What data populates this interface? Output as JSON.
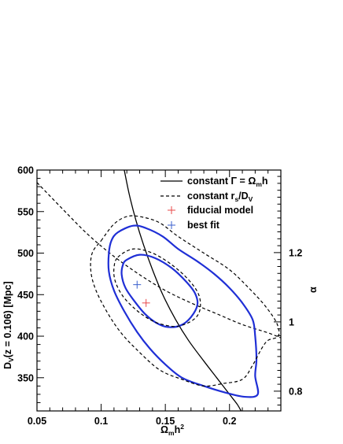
{
  "chart_data": {
    "type": "contour",
    "xlabel": {
      "main": "Ω",
      "sub": "m",
      "after": "h",
      "sup": "2"
    },
    "ylabel": {
      "main": "D",
      "sub": "V",
      "after": "(z = 0.106) [Mpc]"
    },
    "ylabel_right": "α",
    "xlim": [
      0.05,
      0.24
    ],
    "ylim": [
      310,
      600
    ],
    "x_ticks": [
      0.05,
      0.1,
      0.15,
      0.2
    ],
    "x_tick_labels": [
      "0.05",
      "0.1",
      "0.15",
      "0.2"
    ],
    "y_ticks": [
      350,
      400,
      450,
      500,
      550,
      600
    ],
    "y_tick_labels": [
      "350",
      "400",
      "450",
      "500",
      "550",
      "600"
    ],
    "right_ticks_y": [
      333.8,
      417.2,
      500.6
    ],
    "right_tick_labels": [
      "0.8",
      "1",
      "1.2"
    ],
    "legend": [
      {
        "style": "solid",
        "label_main": "constant Γ = Ω",
        "label_sub": "m",
        "label_after": "h"
      },
      {
        "style": "dashed",
        "label_main": "constant r",
        "label_sub": "s",
        "label_after": "/D",
        "label_sub2": "V"
      },
      {
        "style": "marker",
        "color": "#e84a4a",
        "label_main": "fiducial model"
      },
      {
        "style": "marker",
        "color": "#3a5fcd",
        "label_main": "best fit"
      }
    ],
    "series": [
      {
        "style": "solid-black",
        "points": [
          [
            0.118,
            600
          ],
          [
            0.122,
            570
          ],
          [
            0.127,
            540
          ],
          [
            0.133,
            510
          ],
          [
            0.14,
            480
          ],
          [
            0.148,
            450
          ],
          [
            0.158,
            420
          ],
          [
            0.168,
            395
          ],
          [
            0.18,
            370
          ],
          [
            0.19,
            350
          ],
          [
            0.2,
            330
          ],
          [
            0.206,
            318
          ],
          [
            0.209,
            310
          ]
        ]
      },
      {
        "style": "dashed-black",
        "points": [
          [
            0.05,
            585
          ],
          [
            0.07,
            553
          ],
          [
            0.09,
            522
          ],
          [
            0.11,
            496
          ],
          [
            0.13,
            474
          ],
          [
            0.15,
            455
          ],
          [
            0.17,
            440
          ],
          [
            0.19,
            427
          ],
          [
            0.21,
            414
          ],
          [
            0.23,
            404
          ],
          [
            0.24,
            398
          ]
        ]
      },
      {
        "style": "contour-blue",
        "closed": true,
        "points": [
          [
            0.113,
            525
          ],
          [
            0.125,
            533
          ],
          [
            0.135,
            530
          ],
          [
            0.148,
            520
          ],
          [
            0.16,
            505
          ],
          [
            0.175,
            490
          ],
          [
            0.188,
            475
          ],
          [
            0.2,
            458
          ],
          [
            0.21,
            440
          ],
          [
            0.218,
            420
          ],
          [
            0.22,
            400
          ],
          [
            0.221,
            372
          ],
          [
            0.22,
            352
          ],
          [
            0.222,
            330
          ],
          [
            0.212,
            327
          ],
          [
            0.197,
            332
          ],
          [
            0.18,
            340
          ],
          [
            0.163,
            350
          ],
          [
            0.15,
            366
          ],
          [
            0.138,
            385
          ],
          [
            0.128,
            405
          ],
          [
            0.118,
            430
          ],
          [
            0.11,
            455
          ],
          [
            0.106,
            478
          ],
          [
            0.106,
            500
          ],
          [
            0.108,
            515
          ]
        ]
      },
      {
        "style": "contour-blue",
        "closed": true,
        "points": [
          [
            0.12,
            492
          ],
          [
            0.13,
            498
          ],
          [
            0.142,
            494
          ],
          [
            0.155,
            482
          ],
          [
            0.166,
            466
          ],
          [
            0.173,
            452
          ],
          [
            0.175,
            438
          ],
          [
            0.17,
            423
          ],
          [
            0.162,
            413
          ],
          [
            0.152,
            411
          ],
          [
            0.143,
            416
          ],
          [
            0.134,
            427
          ],
          [
            0.126,
            442
          ],
          [
            0.119,
            458
          ],
          [
            0.116,
            474
          ],
          [
            0.117,
            486
          ]
        ]
      },
      {
        "style": "contour-dashed",
        "closed": true,
        "points": [
          [
            0.1,
            515
          ],
          [
            0.11,
            535
          ],
          [
            0.12,
            544
          ],
          [
            0.13,
            544
          ],
          [
            0.145,
            537
          ],
          [
            0.16,
            520
          ],
          [
            0.18,
            500
          ],
          [
            0.2,
            480
          ],
          [
            0.215,
            458
          ],
          [
            0.228,
            436
          ],
          [
            0.237,
            415
          ],
          [
            0.238,
            400
          ],
          [
            0.23,
            395
          ],
          [
            0.225,
            385
          ],
          [
            0.218,
            365
          ],
          [
            0.21,
            348
          ],
          [
            0.195,
            343
          ],
          [
            0.18,
            340
          ],
          [
            0.163,
            348
          ],
          [
            0.145,
            360
          ],
          [
            0.127,
            385
          ],
          [
            0.115,
            405
          ],
          [
            0.105,
            428
          ],
          [
            0.096,
            455
          ],
          [
            0.092,
            478
          ],
          [
            0.093,
            500
          ]
        ]
      },
      {
        "style": "contour-dashed",
        "closed": true,
        "points": [
          [
            0.113,
            495
          ],
          [
            0.125,
            505
          ],
          [
            0.14,
            500
          ],
          [
            0.155,
            486
          ],
          [
            0.168,
            468
          ],
          [
            0.176,
            450
          ],
          [
            0.177,
            432
          ],
          [
            0.172,
            420
          ],
          [
            0.16,
            412
          ],
          [
            0.148,
            414
          ],
          [
            0.138,
            420
          ],
          [
            0.127,
            432
          ],
          [
            0.117,
            448
          ],
          [
            0.111,
            466
          ],
          [
            0.11,
            482
          ]
        ]
      }
    ],
    "markers": [
      {
        "name": "fiducial model",
        "x": 0.135,
        "y": 440,
        "color": "#e84a4a"
      },
      {
        "name": "best fit",
        "x": 0.128,
        "y": 462,
        "color": "#3a5fcd"
      }
    ]
  }
}
